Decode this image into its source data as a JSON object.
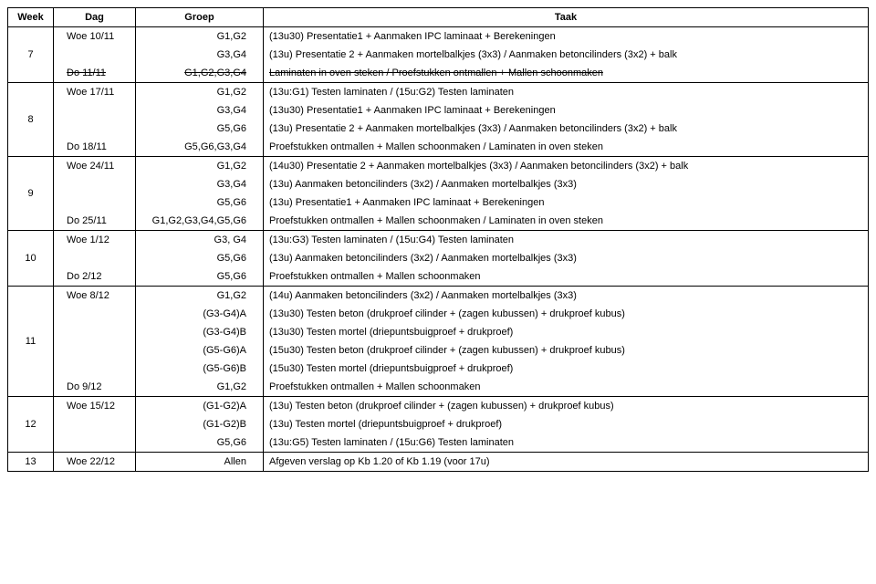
{
  "columns": {
    "week": "Week",
    "dag": "Dag",
    "groep": "Groep",
    "taak": "Taak"
  },
  "weeks": [
    {
      "num": "7",
      "rows": [
        {
          "dag": "Woe 10/11",
          "groep": "G1,G2",
          "taak": "(13u30) Presentatie1  +  Aanmaken IPC laminaat  +  Berekeningen"
        },
        {
          "dag": "",
          "groep": "G3,G4",
          "taak": "(13u) Presentatie 2  +  Aanmaken mortelbalkjes (3x3) / Aanmaken betoncilinders (3x2) +  balk"
        },
        {
          "dag": "Do 11/11",
          "dagStrike": true,
          "groep": "G1,G2,G3,G4",
          "groepStrike": true,
          "taak": "Laminaten in oven steken / Proefstukken ontmallen  +  Mallen schoonmaken",
          "taakStrike": true
        }
      ]
    },
    {
      "num": "8",
      "rows": [
        {
          "dag": "Woe 17/11",
          "groep": "G1,G2",
          "taak": "(13u:G1) Testen laminaten  /  (15u:G2) Testen laminaten"
        },
        {
          "dag": "",
          "groep": "G3,G4",
          "taak": "(13u30) Presentatie1  +  Aanmaken IPC laminaat  +  Berekeningen"
        },
        {
          "dag": "",
          "groep": "G5,G6",
          "taak": "(13u) Presentatie 2  +  Aanmaken mortelbalkjes (3x3) / Aanmaken betoncilinders (3x2) +  balk"
        },
        {
          "dag": "Do 18/11",
          "groep": "G5,G6,G3,G4",
          "taak": "Proefstukken ontmallen  +  Mallen schoonmaken  /  Laminaten in oven steken"
        }
      ]
    },
    {
      "num": "9",
      "rows": [
        {
          "dag": "Woe 24/11",
          "groep": "G1,G2",
          "taak": "(14u30) Presentatie 2  +  Aanmaken mortelbalkjes (3x3) / Aanmaken betoncilinders (3x2) +  balk"
        },
        {
          "dag": "",
          "groep": "G3,G4",
          "taak": "(13u) Aanmaken betoncilinders (3x2)  / Aanmaken mortelbalkjes (3x3)"
        },
        {
          "dag": "",
          "groep": "G5,G6",
          "taak": "(13u) Presentatie1  +  Aanmaken IPC laminaat  +  Berekeningen"
        },
        {
          "dag": "Do 25/11",
          "groep": "G1,G2,G3,G4,G5,G6",
          "taak": "Proefstukken ontmallen  +  Mallen schoonmaken  /  Laminaten in oven steken"
        }
      ]
    },
    {
      "num": "10",
      "rows": [
        {
          "dag": "Woe 1/12",
          "groep": "G3, G4",
          "taak": "(13u:G3) Testen laminaten  /  (15u:G4) Testen laminaten"
        },
        {
          "dag": "",
          "groep": "G5,G6",
          "taak": "(13u) Aanmaken betoncilinders (3x2)  / Aanmaken mortelbalkjes (3x3)"
        },
        {
          "dag": "Do 2/12",
          "groep": "G5,G6",
          "taak": "Proefstukken ontmallen  +  Mallen schoonmaken"
        }
      ]
    },
    {
      "num": "11",
      "rows": [
        {
          "dag": "Woe 8/12",
          "groep": "G1,G2",
          "taak": "(14u) Aanmaken betoncilinders (3x2)  / Aanmaken mortelbalkjes (3x3)"
        },
        {
          "dag": "",
          "groep": "(G3-G4)A",
          "taak": "(13u30) Testen beton (drukproef cilinder +  (zagen kubussen) + drukproef kubus)"
        },
        {
          "dag": "",
          "groep": "(G3-G4)B",
          "taak": "(13u30) Testen mortel (driepuntsbuigproef + drukproef)"
        },
        {
          "dag": "",
          "groep": "(G5-G6)A",
          "taak": "(15u30) Testen beton (drukproef cilinder +  (zagen kubussen) + drukproef kubus)"
        },
        {
          "dag": "",
          "groep": "(G5-G6)B",
          "taak": "(15u30) Testen mortel (driepuntsbuigproef + drukproef)"
        },
        {
          "dag": "Do 9/12",
          "groep": "G1,G2",
          "taak": "Proefstukken ontmallen  +  Mallen schoonmaken"
        }
      ]
    },
    {
      "num": "12",
      "rows": [
        {
          "dag": "Woe 15/12",
          "groep": "(G1-G2)A",
          "taak": "(13u) Testen beton (drukproef cilinder + (zagen kubussen) + drukproef kubus)"
        },
        {
          "dag": "",
          "groep": "(G1-G2)B",
          "taak": "(13u) Testen mortel (driepuntsbuigproef + drukproef)"
        },
        {
          "dag": "",
          "groep": "G5,G6",
          "taak": "(13u:G5) Testen laminaten  /  (15u:G6) Testen laminaten"
        }
      ]
    },
    {
      "num": "13",
      "rows": [
        {
          "dag": "Woe 22/12",
          "groep": "Allen",
          "taak": "Afgeven verslag op Kb 1.20 of Kb 1.19 (voor 17u)"
        }
      ]
    }
  ]
}
